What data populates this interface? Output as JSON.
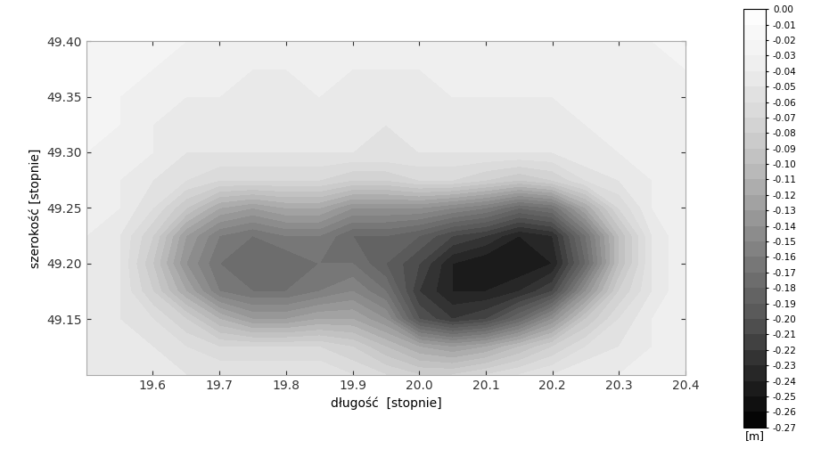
{
  "chart_data": {
    "type": "heatmap",
    "xlabel": "długość  [stopnie]",
    "ylabel": "szerokość [stopnie]",
    "x": [
      19.5,
      19.55,
      19.6,
      19.65,
      19.7,
      19.75,
      19.8,
      19.85,
      19.9,
      19.95,
      20.0,
      20.05,
      20.1,
      20.15,
      20.2,
      20.25,
      20.3,
      20.35,
      20.4
    ],
    "y": [
      49.1,
      49.125,
      49.15,
      49.175,
      49.2,
      49.225,
      49.25,
      49.275,
      49.3,
      49.325,
      49.35,
      49.375,
      49.4
    ],
    "cells": [
      [
        -0.04,
        -0.04,
        -0.04,
        -0.05,
        -0.05,
        -0.05,
        -0.05,
        -0.05,
        -0.06,
        -0.07,
        -0.08,
        -0.08,
        -0.07,
        -0.06,
        -0.05,
        -0.04,
        -0.04,
        -0.03,
        -0.03
      ],
      [
        -0.04,
        -0.04,
        -0.05,
        -0.06,
        -0.07,
        -0.07,
        -0.07,
        -0.07,
        -0.08,
        -0.1,
        -0.12,
        -0.13,
        -0.12,
        -0.1,
        -0.08,
        -0.06,
        -0.05,
        -0.04,
        -0.03
      ],
      [
        -0.04,
        -0.05,
        -0.06,
        -0.08,
        -0.11,
        -0.13,
        -0.13,
        -0.12,
        -0.12,
        -0.14,
        -0.2,
        -0.22,
        -0.21,
        -0.18,
        -0.14,
        -0.09,
        -0.06,
        -0.04,
        -0.03
      ],
      [
        -0.04,
        -0.05,
        -0.08,
        -0.12,
        -0.16,
        -0.17,
        -0.17,
        -0.16,
        -0.15,
        -0.17,
        -0.22,
        -0.24,
        -0.24,
        -0.23,
        -0.21,
        -0.14,
        -0.08,
        -0.05,
        -0.03
      ],
      [
        -0.04,
        -0.05,
        -0.09,
        -0.14,
        -0.17,
        -0.18,
        -0.18,
        -0.17,
        -0.17,
        -0.19,
        -0.21,
        -0.24,
        -0.25,
        -0.25,
        -0.24,
        -0.18,
        -0.1,
        -0.05,
        -0.03
      ],
      [
        -0.04,
        -0.05,
        -0.08,
        -0.13,
        -0.16,
        -0.17,
        -0.16,
        -0.16,
        -0.18,
        -0.18,
        -0.19,
        -0.21,
        -0.22,
        -0.24,
        -0.23,
        -0.17,
        -0.1,
        -0.05,
        -0.03
      ],
      [
        -0.03,
        -0.04,
        -0.06,
        -0.09,
        -0.12,
        -0.13,
        -0.12,
        -0.12,
        -0.14,
        -0.14,
        -0.14,
        -0.15,
        -0.16,
        -0.18,
        -0.17,
        -0.12,
        -0.07,
        -0.04,
        -0.03
      ],
      [
        -0.03,
        -0.04,
        -0.05,
        -0.06,
        -0.07,
        -0.07,
        -0.07,
        -0.07,
        -0.08,
        -0.08,
        -0.07,
        -0.07,
        -0.08,
        -0.09,
        -0.08,
        -0.06,
        -0.05,
        -0.04,
        -0.03
      ],
      [
        -0.03,
        -0.03,
        -0.04,
        -0.05,
        -0.05,
        -0.05,
        -0.05,
        -0.05,
        -0.05,
        -0.05,
        -0.05,
        -0.05,
        -0.05,
        -0.05,
        -0.05,
        -0.04,
        -0.04,
        -0.03,
        -0.03
      ],
      [
        -0.02,
        -0.03,
        -0.04,
        -0.04,
        -0.04,
        -0.04,
        -0.04,
        -0.04,
        -0.04,
        -0.05,
        -0.04,
        -0.04,
        -0.04,
        -0.04,
        -0.04,
        -0.04,
        -0.03,
        -0.03,
        -0.03
      ],
      [
        -0.02,
        -0.03,
        -0.03,
        -0.04,
        -0.04,
        -0.04,
        -0.04,
        -0.04,
        -0.04,
        -0.04,
        -0.04,
        -0.04,
        -0.04,
        -0.04,
        -0.04,
        -0.03,
        -0.03,
        -0.03,
        -0.03
      ],
      [
        -0.02,
        -0.02,
        -0.03,
        -0.03,
        -0.03,
        -0.04,
        -0.04,
        -0.03,
        -0.04,
        -0.04,
        -0.04,
        -0.03,
        -0.03,
        -0.03,
        -0.03,
        -0.03,
        -0.03,
        -0.03,
        -0.03
      ],
      [
        -0.02,
        -0.02,
        -0.02,
        -0.03,
        -0.03,
        -0.03,
        -0.03,
        -0.03,
        -0.03,
        -0.03,
        -0.03,
        -0.03,
        -0.03,
        -0.03,
        -0.03,
        -0.03,
        -0.03,
        -0.03,
        -0.02
      ]
    ],
    "xlim": [
      19.5,
      20.4
    ],
    "ylim": [
      49.1,
      49.4
    ],
    "xticks": [
      19.6,
      19.7,
      19.8,
      19.9,
      20.0,
      20.1,
      20.2,
      20.3,
      20.4
    ],
    "yticks": [
      49.15,
      {
        "value": 49.2,
        "label": "49.20"
      },
      49.25,
      {
        "value": 49.3,
        "label": "49.30"
      },
      49.35,
      {
        "value": 49.4,
        "label": "49.40"
      }
    ],
    "colorbar": {
      "label": "[m]",
      "range": [
        -0.27,
        0.0
      ],
      "ticks": [
        {
          "value": -0.27,
          "label": "-0.27"
        },
        {
          "value": -0.26,
          "label": "-0.26"
        },
        {
          "value": -0.25,
          "label": "-0.25"
        },
        {
          "value": -0.24,
          "label": "-0.24"
        },
        {
          "value": -0.23,
          "label": "-0.23"
        },
        {
          "value": -0.22,
          "label": "-0.22"
        },
        {
          "value": -0.21,
          "label": "-0.21"
        },
        {
          "value": -0.2,
          "label": "-0.20"
        },
        {
          "value": -0.19,
          "label": "-0.19"
        },
        {
          "value": -0.18,
          "label": "-0.18"
        },
        {
          "value": -0.17,
          "label": "-0.17"
        },
        {
          "value": -0.16,
          "label": "-0.16"
        },
        {
          "value": -0.15,
          "label": "-0.15"
        },
        {
          "value": -0.14,
          "label": "-0.14"
        },
        {
          "value": -0.13,
          "label": "-0.13"
        },
        {
          "value": -0.12,
          "label": "-0.12"
        },
        {
          "value": -0.11,
          "label": "-0.11"
        },
        {
          "value": -0.1,
          "label": "-0.10"
        },
        {
          "value": -0.09,
          "label": "-0.09"
        },
        {
          "value": -0.08,
          "label": "-0.08"
        },
        {
          "value": -0.07,
          "label": "-0.07"
        },
        {
          "value": -0.06,
          "label": "-0.06"
        },
        {
          "value": -0.05,
          "label": "-0.05"
        },
        {
          "value": -0.04,
          "label": "-0.04"
        },
        {
          "value": -0.03,
          "label": "-0.03"
        },
        {
          "value": -0.02,
          "label": "-0.02"
        },
        {
          "value": -0.01,
          "label": "-0.01"
        },
        {
          "value": 0.0,
          "label": "0.00"
        }
      ]
    }
  }
}
